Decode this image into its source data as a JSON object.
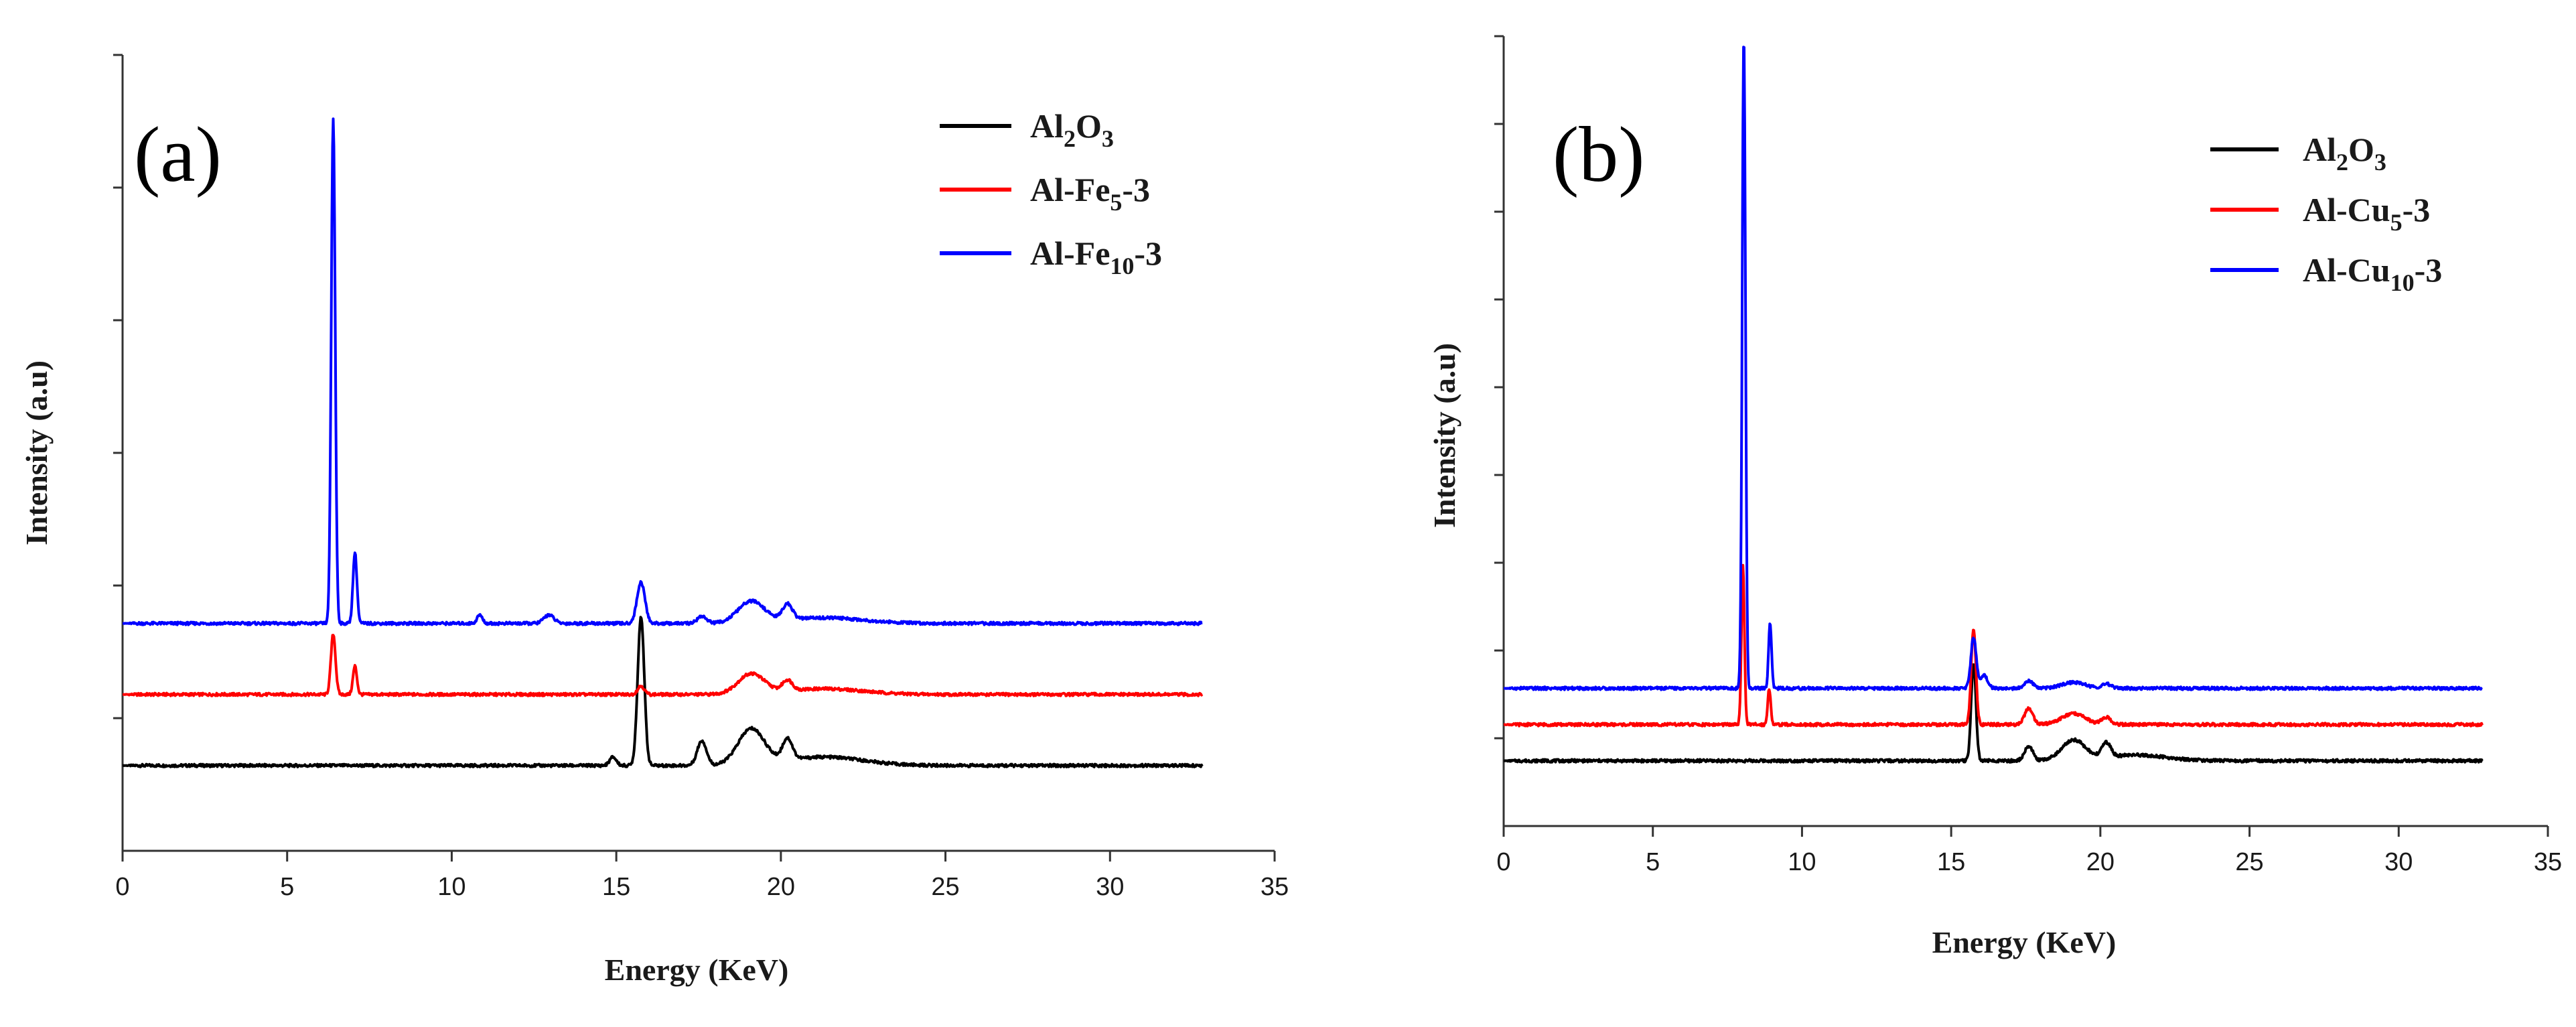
{
  "chart_data": [
    {
      "type": "line",
      "panel_label": "(a)",
      "xlabel": "Energy (KeV)",
      "ylabel": "Intensity (a.u)",
      "xlim": [
        0,
        35
      ],
      "xticks": [
        0,
        5,
        10,
        15,
        20,
        25,
        30,
        35
      ],
      "ylim": [
        -0.12,
        1.0
      ],
      "ytick_count": 6,
      "ytick_labels_shown": false,
      "legend_position": "top-right",
      "series": [
        {
          "name": "Al2O3",
          "legend_main": "Al",
          "legend_sub1": "2",
          "legend_mid": "O",
          "legend_sub2": "3",
          "legend_tail": "",
          "color": "#000000",
          "baseline": 0.0,
          "x_end": 32.8,
          "peaks": [
            [
              14.9,
              0.012,
              0.1
            ],
            [
              15.75,
              0.21,
              0.1
            ],
            [
              17.6,
              0.035,
              0.14
            ],
            [
              19.1,
              0.05,
              0.4
            ],
            [
              20.2,
              0.03,
              0.15
            ],
            [
              21.3,
              0.012,
              1.2
            ]
          ]
        },
        {
          "name": "Al-Fe5-3",
          "legend_main": "Al-Fe",
          "legend_sub1": "5",
          "legend_mid": "",
          "legend_sub2": "",
          "legend_tail": "-3",
          "color": "#ff0000",
          "baseline": 0.1,
          "x_end": 32.8,
          "peaks": [
            [
              6.4,
              0.085,
              0.07
            ],
            [
              7.06,
              0.04,
              0.06
            ],
            [
              15.75,
              0.012,
              0.1
            ],
            [
              19.1,
              0.028,
              0.4
            ],
            [
              20.2,
              0.015,
              0.15
            ],
            [
              21.3,
              0.008,
              1.2
            ]
          ]
        },
        {
          "name": "Al-Fe10-3",
          "legend_main": "Al-Fe",
          "legend_sub1": "10",
          "legend_mid": "",
          "legend_sub2": "",
          "legend_tail": "-3",
          "color": "#0000ff",
          "baseline": 0.2,
          "x_end": 32.8,
          "peaks": [
            [
              6.4,
              0.71,
              0.06
            ],
            [
              7.06,
              0.1,
              0.06
            ],
            [
              10.85,
              0.012,
              0.08
            ],
            [
              12.95,
              0.012,
              0.15
            ],
            [
              15.75,
              0.058,
              0.12
            ],
            [
              17.6,
              0.01,
              0.14
            ],
            [
              19.1,
              0.03,
              0.4
            ],
            [
              20.2,
              0.022,
              0.15
            ],
            [
              21.3,
              0.008,
              1.2
            ]
          ]
        }
      ]
    },
    {
      "type": "line",
      "panel_label": "(b)",
      "xlabel": "Energy (KeV)",
      "ylabel": "Intensity (a.u)",
      "xlim": [
        0,
        35
      ],
      "xticks": [
        0,
        5,
        10,
        15,
        20,
        25,
        30,
        35
      ],
      "ylim": [
        -0.09,
        1.0
      ],
      "ytick_count": 9,
      "ytick_labels_shown": false,
      "legend_position": "top-right",
      "series": [
        {
          "name": "Al2O3",
          "legend_main": "Al",
          "legend_sub1": "2",
          "legend_mid": "O",
          "legend_sub2": "3",
          "legend_tail": "",
          "color": "#000000",
          "baseline": 0.0,
          "x_end": 32.8,
          "peaks": [
            [
              15.75,
              0.135,
              0.08
            ],
            [
              17.6,
              0.02,
              0.14
            ],
            [
              19.1,
              0.028,
              0.4
            ],
            [
              20.2,
              0.02,
              0.15
            ],
            [
              21.2,
              0.008,
              1.0
            ]
          ]
        },
        {
          "name": "Al-Cu5-3",
          "legend_main": "Al-Cu",
          "legend_sub1": "5",
          "legend_mid": "",
          "legend_sub2": "",
          "legend_tail": "-3",
          "color": "#ff0000",
          "baseline": 0.05,
          "x_end": 32.8,
          "peaks": [
            [
              8.02,
              0.22,
              0.05
            ],
            [
              8.9,
              0.05,
              0.05
            ],
            [
              15.75,
              0.13,
              0.08
            ],
            [
              17.6,
              0.022,
              0.14
            ],
            [
              19.1,
              0.015,
              0.4
            ],
            [
              20.2,
              0.01,
              0.15
            ]
          ]
        },
        {
          "name": "Al-Cu10-3",
          "legend_main": "Al-Cu",
          "legend_sub1": "10",
          "legend_mid": "",
          "legend_sub2": "",
          "legend_tail": "-3",
          "color": "#0000ff",
          "baseline": 0.1,
          "x_end": 32.8,
          "peaks": [
            [
              8.05,
              0.9,
              0.055
            ],
            [
              8.93,
              0.09,
              0.05
            ],
            [
              15.75,
              0.07,
              0.09
            ],
            [
              16.1,
              0.018,
              0.12
            ],
            [
              17.6,
              0.01,
              0.14
            ],
            [
              19.1,
              0.008,
              0.4
            ],
            [
              20.2,
              0.006,
              0.15
            ]
          ]
        }
      ]
    }
  ]
}
